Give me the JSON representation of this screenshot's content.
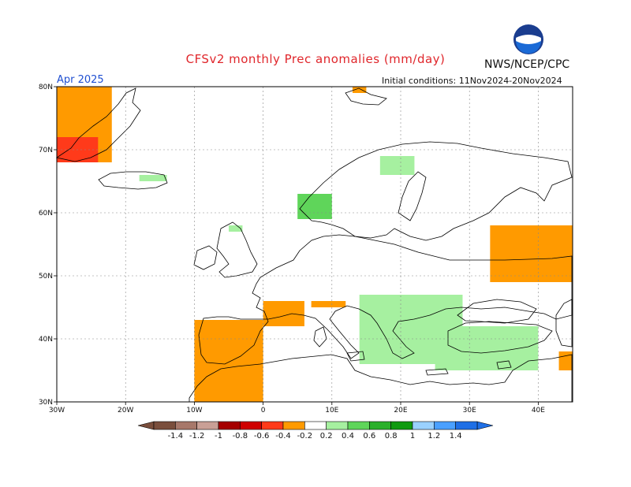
{
  "header": {
    "title": "CFSv2 monthly Prec anomalies (mm/day)",
    "agency": "NWS/NCEP/CPC",
    "logo_text": "NOAA",
    "month": "Apr 2025",
    "initial_conditions": "Initial conditions: 11Nov2024-20Nov2024"
  },
  "axes": {
    "lat_labels": [
      "80N",
      "70N",
      "60N",
      "50N",
      "40N",
      "30N"
    ],
    "lat_values": [
      80,
      70,
      60,
      50,
      40,
      30
    ],
    "lon_labels": [
      "30W",
      "20W",
      "10W",
      "0",
      "10E",
      "20E",
      "30E",
      "40E"
    ],
    "lon_values": [
      -30,
      -20,
      -10,
      0,
      10,
      20,
      30,
      40
    ],
    "lat_range": [
      30,
      80
    ],
    "lon_range": [
      -30,
      45
    ],
    "grid": true
  },
  "colorbar": {
    "labels": [
      "-1.4",
      "-1.2",
      "-1",
      "-0.8",
      "-0.6",
      "-0.4",
      "-0.2",
      "0.2",
      "0.4",
      "0.6",
      "0.8",
      "1",
      "1.2",
      "1.4"
    ],
    "colors": [
      "#7a4e3c",
      "#a7786a",
      "#c9a096",
      "#a50000",
      "#cf0000",
      "#ff3a1a",
      "#ff9a00",
      "#ffffff",
      "#a6f0a0",
      "#5fd55a",
      "#2ab02a",
      "#109a10",
      "#9ad1ff",
      "#4aa0ff",
      "#1f6fe6"
    ]
  },
  "anomaly_regions": [
    {
      "name": "greenland-positive-anomaly",
      "color": "#ff9a00",
      "lon": [
        -30,
        -22
      ],
      "lat": [
        68,
        80
      ]
    },
    {
      "name": "greenland-strong-anomaly",
      "color": "#ff3a1a",
      "lon": [
        -30,
        -24
      ],
      "lat": [
        68,
        72
      ]
    },
    {
      "name": "svalbard-anomaly",
      "color": "#ff9a00",
      "lon": [
        13,
        15
      ],
      "lat": [
        79,
        80
      ]
    },
    {
      "name": "iberia-strong-dry",
      "color": "#a50000",
      "lon": [
        -9,
        -6
      ],
      "lat": [
        37,
        42
      ]
    },
    {
      "name": "iberia-dry",
      "color": "#ff3a1a",
      "lon": [
        -9,
        -4
      ],
      "lat": [
        34,
        43
      ]
    },
    {
      "name": "iberia-light-dry",
      "color": "#ff9a00",
      "lon": [
        -10,
        0
      ],
      "lat": [
        30,
        43
      ]
    },
    {
      "name": "france-dry",
      "color": "#ff9a00",
      "lon": [
        0,
        6
      ],
      "lat": [
        42,
        46
      ]
    },
    {
      "name": "alps-dry",
      "color": "#ff9a00",
      "lon": [
        7,
        12
      ],
      "lat": [
        45,
        46
      ]
    },
    {
      "name": "russia-dry",
      "color": "#ff9a00",
      "lon": [
        33,
        45
      ],
      "lat": [
        49,
        58
      ]
    },
    {
      "name": "middle-east-dry",
      "color": "#ff9a00",
      "lon": [
        43,
        45
      ],
      "lat": [
        35,
        38
      ]
    },
    {
      "name": "norway-wet",
      "color": "#5fd55a",
      "lon": [
        5,
        10
      ],
      "lat": [
        59,
        63
      ]
    },
    {
      "name": "scandinavia-light-wet",
      "color": "#a6f0a0",
      "lon": [
        17,
        22
      ],
      "lat": [
        66,
        69
      ]
    },
    {
      "name": "scotland-wet",
      "color": "#a6f0a0",
      "lon": [
        -5,
        -3
      ],
      "lat": [
        57,
        58
      ]
    },
    {
      "name": "iceland-wet",
      "color": "#a6f0a0",
      "lon": [
        -18,
        -14
      ],
      "lat": [
        65,
        66
      ]
    },
    {
      "name": "balkans-wet",
      "color": "#2ab02a",
      "lon": [
        16,
        27
      ],
      "lat": [
        38,
        44
      ]
    },
    {
      "name": "balkans-light-wet",
      "color": "#a6f0a0",
      "lon": [
        14,
        29
      ],
      "lat": [
        36,
        47
      ]
    },
    {
      "name": "turkey-wet",
      "color": "#5fd55a",
      "lon": [
        27,
        37
      ],
      "lat": [
        36,
        40
      ]
    },
    {
      "name": "turkey-light-wet",
      "color": "#a6f0a0",
      "lon": [
        25,
        40
      ],
      "lat": [
        35,
        42
      ]
    }
  ]
}
